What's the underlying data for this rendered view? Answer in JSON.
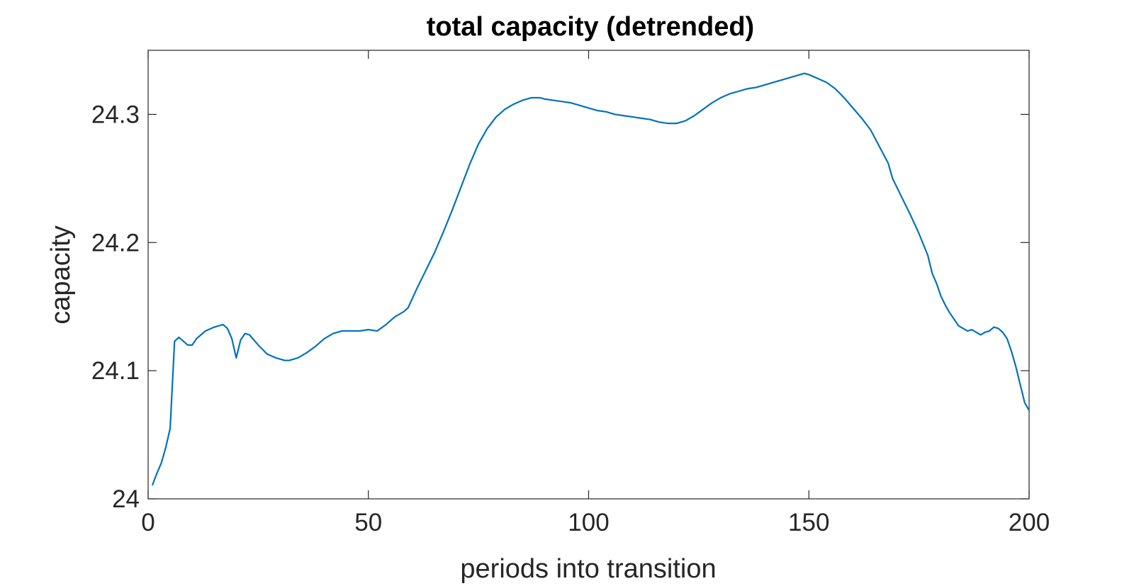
{
  "chart_data": {
    "type": "line",
    "title": "total capacity (detrended)",
    "xlabel": "periods into transition",
    "ylabel": "capacity",
    "xlim": [
      0,
      200
    ],
    "ylim": [
      24,
      24.35
    ],
    "xticks": [
      0,
      50,
      100,
      150,
      200
    ],
    "yticks": [
      24,
      24.1,
      24.2,
      24.3
    ],
    "xtick_labels": [
      "0",
      "50",
      "100",
      "150",
      "200"
    ],
    "ytick_labels": [
      "24",
      "24.1",
      "24.2",
      "24.3"
    ],
    "grid": false,
    "color": "#0072BD",
    "series": [
      {
        "x": [
          1,
          2,
          3,
          4,
          5,
          6,
          7,
          8,
          9,
          10,
          11,
          12,
          13,
          15,
          17,
          18,
          19,
          20,
          21,
          22,
          23,
          24,
          25,
          27,
          29,
          31,
          32,
          34,
          36,
          38,
          40,
          42,
          44,
          46,
          48,
          50,
          52,
          54,
          56,
          58,
          59,
          61,
          63,
          65,
          67,
          69,
          71,
          73,
          75,
          77,
          79,
          81,
          83,
          85,
          87,
          89,
          90,
          92,
          94,
          96,
          98,
          100,
          102,
          104,
          106,
          108,
          110,
          112,
          114,
          116,
          118,
          120,
          122,
          124,
          126,
          128,
          130,
          132,
          134,
          136,
          138,
          140,
          142,
          144,
          146,
          148,
          149,
          150,
          152,
          154,
          156,
          158,
          160,
          162,
          164,
          166,
          168,
          169,
          171,
          173,
          175,
          177,
          178,
          179,
          180,
          181,
          182,
          183,
          184,
          185,
          186,
          187,
          188,
          189,
          190,
          191,
          192,
          193,
          194,
          195,
          196,
          197,
          198,
          199,
          200
        ],
        "y": [
          24.011,
          24.02,
          24.028,
          24.04,
          24.055,
          24.123,
          24.126,
          24.123,
          24.12,
          24.12,
          24.125,
          24.128,
          24.131,
          24.134,
          24.136,
          24.133,
          24.125,
          24.11,
          24.124,
          24.129,
          24.128,
          24.124,
          24.12,
          24.113,
          24.11,
          24.108,
          24.108,
          24.11,
          24.114,
          24.119,
          24.125,
          24.129,
          24.131,
          24.131,
          24.131,
          24.132,
          24.131,
          24.136,
          24.142,
          24.146,
          24.149,
          24.164,
          24.178,
          24.192,
          24.208,
          24.225,
          24.243,
          24.261,
          24.277,
          24.289,
          24.298,
          24.304,
          24.308,
          24.311,
          24.313,
          24.313,
          24.312,
          24.311,
          24.31,
          24.309,
          24.307,
          24.305,
          24.303,
          24.302,
          24.3,
          24.299,
          24.298,
          24.297,
          24.296,
          24.294,
          24.293,
          24.293,
          24.295,
          24.299,
          24.304,
          24.309,
          24.313,
          24.316,
          24.318,
          24.32,
          24.321,
          24.323,
          24.325,
          24.327,
          24.329,
          24.331,
          24.332,
          24.331,
          24.328,
          24.325,
          24.32,
          24.313,
          24.305,
          24.297,
          24.288,
          24.275,
          24.262,
          24.25,
          24.236,
          24.222,
          24.207,
          24.19,
          24.176,
          24.168,
          24.158,
          24.151,
          24.145,
          24.14,
          24.135,
          24.133,
          24.131,
          24.132,
          24.13,
          24.128,
          24.13,
          24.131,
          24.134,
          24.133,
          24.13,
          24.125,
          24.115,
          24.103,
          24.089,
          24.075,
          24.069
        ]
      }
    ]
  }
}
